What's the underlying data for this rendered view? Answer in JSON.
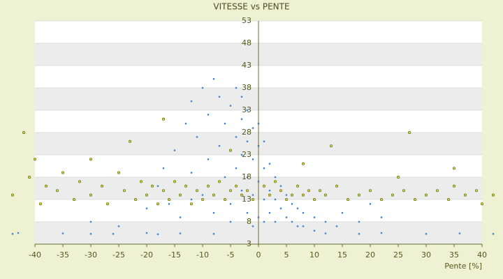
{
  "chart_data": {
    "type": "scatter",
    "title": "VITESSE vs PENTE",
    "x_label": "Pente [%]",
    "xlim": [
      -40,
      40
    ],
    "xticks": [
      -40,
      -35,
      -30,
      -25,
      -20,
      -15,
      -10,
      -5,
      0,
      5,
      10,
      15,
      20,
      25,
      30,
      35,
      40
    ],
    "ylim": [
      3,
      53
    ],
    "yticks": [
      3,
      8,
      13,
      18,
      23,
      28,
      33,
      38,
      43,
      48,
      53
    ],
    "grid": true,
    "series": [
      {
        "color": "#3a8ad6",
        "x": [
          -44,
          -43,
          -35,
          -30,
          -26,
          -20,
          -18,
          -14,
          -8,
          12,
          18,
          22,
          30,
          36,
          42,
          -20,
          -18,
          -17,
          -15,
          -14,
          -13,
          -12,
          -12,
          -11,
          -10,
          -10,
          -9,
          -9,
          -8,
          -8,
          -7,
          -7,
          -6,
          -6,
          -5,
          -5,
          -5,
          -4,
          -4,
          -4,
          -3,
          -3,
          -3,
          -3,
          -2,
          -2,
          -2,
          -2,
          -1,
          -1,
          -1,
          -1,
          0,
          0,
          0,
          0,
          1,
          1,
          1,
          1,
          2,
          2,
          2,
          3,
          3,
          3,
          4,
          4,
          5,
          5,
          6,
          6,
          7,
          7,
          8,
          8,
          10,
          10,
          12,
          14,
          15,
          18,
          20,
          22,
          -25,
          -30,
          -16,
          -12
        ],
        "values": [
          5.3,
          5.5,
          5.4,
          5.3,
          5.3,
          5.5,
          5.2,
          5.4,
          5.3,
          5.4,
          5.3,
          5.5,
          5.3,
          5.4,
          5.3,
          11,
          16,
          20,
          24,
          9,
          30,
          19,
          35,
          27,
          38,
          14,
          22,
          32,
          40,
          10,
          25,
          36,
          18,
          30,
          34,
          12,
          8,
          27,
          38,
          20,
          31,
          15,
          23,
          36,
          26,
          33,
          18,
          10,
          29,
          22,
          14,
          7,
          30,
          25,
          17,
          9,
          26,
          20,
          13,
          8,
          21,
          15,
          10,
          18,
          13,
          8,
          16,
          11,
          14,
          9,
          12,
          8,
          11,
          7,
          10,
          7,
          9,
          6,
          8,
          7,
          10,
          8,
          12,
          9,
          7,
          8,
          12,
          13
        ]
      },
      {
        "color": "#d4d43a",
        "x": [
          -44,
          -41,
          -40,
          -39,
          -38,
          -36,
          -35,
          -33,
          -32,
          -30,
          -28,
          -27,
          -25,
          -24,
          -22,
          -21,
          -20,
          -19,
          -18,
          -17,
          -16,
          -15,
          -14,
          -13,
          -12,
          -11,
          -10,
          -9,
          -8,
          -7,
          -6,
          -5,
          -4,
          -3,
          -2,
          -1,
          1,
          2,
          3,
          4,
          5,
          6,
          7,
          8,
          9,
          10,
          11,
          12,
          14,
          16,
          18,
          20,
          22,
          24,
          26,
          27,
          28,
          30,
          32,
          34,
          35,
          37,
          39,
          40,
          42,
          -42,
          -30,
          -17,
          -23,
          -5,
          8,
          13,
          25,
          35
        ],
        "values": [
          14,
          18,
          22,
          12,
          16,
          15,
          19,
          13,
          17,
          14,
          16,
          12,
          19,
          15,
          13,
          17,
          14,
          16,
          12,
          15,
          13,
          17,
          14,
          16,
          12,
          15,
          13,
          16,
          14,
          17,
          13,
          15,
          16,
          14,
          15,
          13,
          16,
          14,
          17,
          15,
          13,
          14,
          16,
          14,
          15,
          13,
          15,
          14,
          16,
          13,
          14,
          15,
          13,
          14,
          15,
          28,
          13,
          14,
          15,
          13,
          16,
          14,
          15,
          12,
          14,
          28,
          22,
          31,
          26,
          24,
          21,
          25,
          18,
          20
        ]
      }
    ]
  }
}
